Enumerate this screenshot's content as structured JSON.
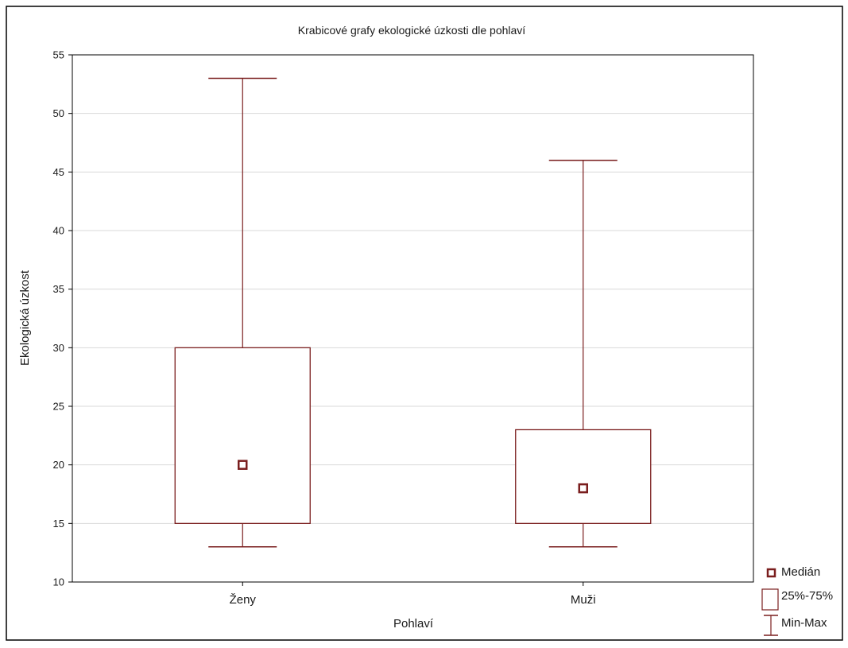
{
  "chart_data": {
    "type": "box",
    "title": "Krabicové grafy ekologické úzkosti dle pohlaví",
    "xlabel": "Pohlaví",
    "ylabel": "Ekologická úzkost",
    "ylim": [
      10,
      55
    ],
    "yticks": [
      10,
      15,
      20,
      25,
      30,
      35,
      40,
      45,
      50,
      55
    ],
    "grid": true,
    "legend_position": "bottom-right",
    "categories": [
      "Ženy",
      "Muži"
    ],
    "boxes": [
      {
        "category": "Ženy",
        "min": 13,
        "q1": 15,
        "median": 20,
        "q3": 30,
        "max": 53
      },
      {
        "category": "Muži",
        "min": 13,
        "q1": 15,
        "median": 18,
        "q3": 23,
        "max": 46
      }
    ],
    "legend": [
      {
        "symbol": "median",
        "label": "Medián"
      },
      {
        "symbol": "box",
        "label": "25%-75%"
      },
      {
        "symbol": "whisker",
        "label": "Min-Max"
      }
    ],
    "colors": {
      "box_stroke": "#7a1e1e",
      "grid": "#d9d9d9",
      "frame": "#000000"
    }
  }
}
